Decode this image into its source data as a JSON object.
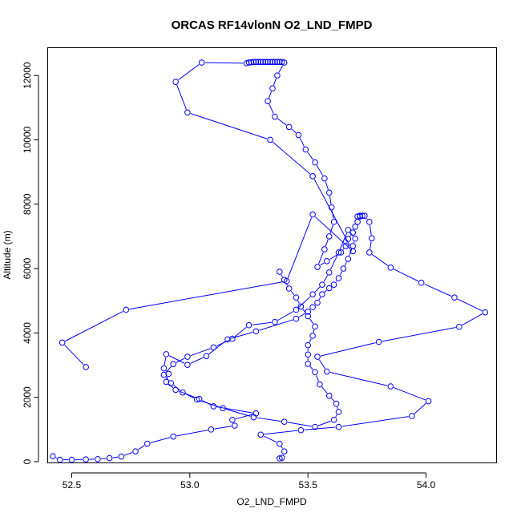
{
  "chart_data": {
    "type": "line",
    "title": "ORCAS RF14vlonN O2_LND_FMPD",
    "xlabel": "O2_LND_FMPD",
    "ylabel": "Altitude (m)",
    "xlim": [
      52.4,
      54.3
    ],
    "ylim": [
      -50,
      12850
    ],
    "xticks": [
      52.5,
      53.0,
      53.5,
      54.0
    ],
    "xtick_labels": [
      "52.5",
      "53.0",
      "53.5",
      "54.0"
    ],
    "yticks": [
      0,
      2000,
      4000,
      6000,
      8000,
      10000,
      12000
    ],
    "ytick_labels": [
      "0",
      "2000",
      "4000",
      "6000",
      "8000",
      "10000",
      "12000"
    ],
    "color": "#0000ff",
    "marker": "open-circle",
    "grid": false,
    "legend": "none",
    "series": [
      {
        "x": [
          52.56,
          52.46,
          52.73,
          53.41,
          53.52,
          53.69,
          53.52,
          53.34,
          52.99,
          52.94,
          53.05,
          53.24,
          53.25,
          53.26,
          53.27,
          53.28,
          53.29,
          53.3,
          53.31,
          53.32,
          53.33,
          53.34,
          53.35,
          53.36,
          53.37,
          53.38,
          53.39,
          53.4,
          53.37,
          53.35,
          53.33,
          53.36,
          53.42,
          53.46,
          53.49,
          53.53,
          53.57,
          53.59,
          53.6,
          53.61,
          53.59,
          53.57,
          53.54,
          53.58,
          53.64,
          53.66,
          53.67,
          53.69,
          53.7,
          53.71,
          53.72,
          53.71,
          53.72,
          53.73,
          53.74,
          53.76,
          53.77,
          53.76,
          53.85,
          53.98,
          54.12,
          54.25,
          54.14,
          53.8,
          53.54,
          53.58,
          53.85,
          54.01,
          53.94,
          53.63,
          53.47,
          53.3,
          53.38,
          53.4,
          53.39,
          53.38
        ],
        "y": [
          2940,
          3700,
          4720,
          5610,
          7680,
          6540,
          8870,
          10000,
          10850,
          11800,
          12400,
          12380,
          12400,
          12410,
          12420,
          12420,
          12420,
          12420,
          12420,
          12420,
          12420,
          12420,
          12420,
          12420,
          12420,
          12420,
          12420,
          12400,
          12000,
          11600,
          11200,
          10720,
          10400,
          10150,
          9700,
          9300,
          8800,
          8360,
          7900,
          7450,
          7000,
          6600,
          6050,
          6230,
          6500,
          6700,
          6920,
          7120,
          7300,
          7450,
          7620,
          7620,
          7640,
          7640,
          7640,
          7450,
          6940,
          6500,
          6030,
          5560,
          5100,
          4640,
          4190,
          3720,
          3260,
          2800,
          2340,
          1880,
          1420,
          1080,
          980,
          840,
          560,
          320,
          120,
          100
        ]
      },
      {
        "x": [
          52.42,
          52.45,
          52.5,
          52.56,
          52.61,
          52.66,
          52.71,
          52.77,
          52.82,
          52.93,
          53.09,
          53.19,
          53.18,
          53.28,
          53.1,
          53.04,
          52.94,
          52.9,
          52.91,
          52.89,
          52.9,
          52.99,
          53.07,
          53.16,
          53.28,
          53.45,
          53.5,
          53.52,
          53.54,
          53.56,
          53.59,
          53.61,
          53.63,
          53.65,
          53.67,
          53.69,
          53.7,
          53.67,
          53.63,
          53.59,
          53.56,
          53.52,
          53.45,
          53.36,
          53.25,
          53.18,
          53.1,
          52.99,
          52.93,
          52.89,
          52.92,
          52.97,
          53.03,
          53.14,
          53.27,
          53.4,
          53.53,
          53.61,
          53.63,
          53.62,
          53.59,
          53.55,
          53.53,
          53.5,
          53.5,
          53.5,
          53.52,
          53.53,
          53.5,
          53.47,
          53.45,
          53.42,
          53.4,
          53.38
        ],
        "y": [
          170,
          60,
          60,
          70,
          80,
          110,
          160,
          320,
          560,
          780,
          1000,
          1120,
          1300,
          1500,
          1720,
          1950,
          2230,
          2480,
          2730,
          2900,
          3340,
          3010,
          3280,
          3800,
          4050,
          4440,
          4660,
          4800,
          4940,
          5200,
          5390,
          5500,
          5700,
          6000,
          6300,
          6700,
          6930,
          7200,
          6500,
          5880,
          5500,
          5200,
          4720,
          4340,
          4240,
          3820,
          3550,
          3260,
          3030,
          2700,
          2440,
          2150,
          1930,
          1660,
          1380,
          1240,
          1080,
          1300,
          1550,
          1800,
          2050,
          2400,
          2780,
          3040,
          3330,
          3620,
          3910,
          4200,
          4520,
          4820,
          5100,
          5380,
          5650,
          5900
        ]
      }
    ]
  }
}
